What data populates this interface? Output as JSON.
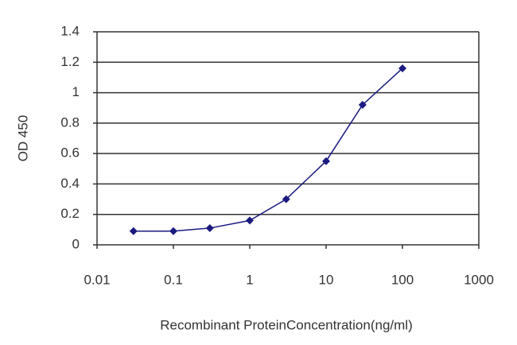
{
  "chart_data": {
    "type": "line",
    "xlabel": "Recombinant ProteinConcentration(ng/ml)",
    "ylabel": "OD 450",
    "x": [
      0.03,
      0.1,
      0.3,
      1,
      3,
      10,
      30,
      100
    ],
    "values": [
      0.09,
      0.09,
      0.11,
      0.16,
      0.3,
      0.55,
      0.92,
      1.16
    ],
    "color": "#1a1a80",
    "xscale": "log",
    "xlim": [
      0.01,
      1000
    ],
    "xticks": [
      0.01,
      0.1,
      1,
      10,
      100,
      1000
    ],
    "ylim": [
      0,
      1.4
    ],
    "yticks": [
      0,
      0.2,
      0.4,
      0.6,
      0.8,
      1,
      1.2,
      1.4
    ],
    "grid": true
  }
}
